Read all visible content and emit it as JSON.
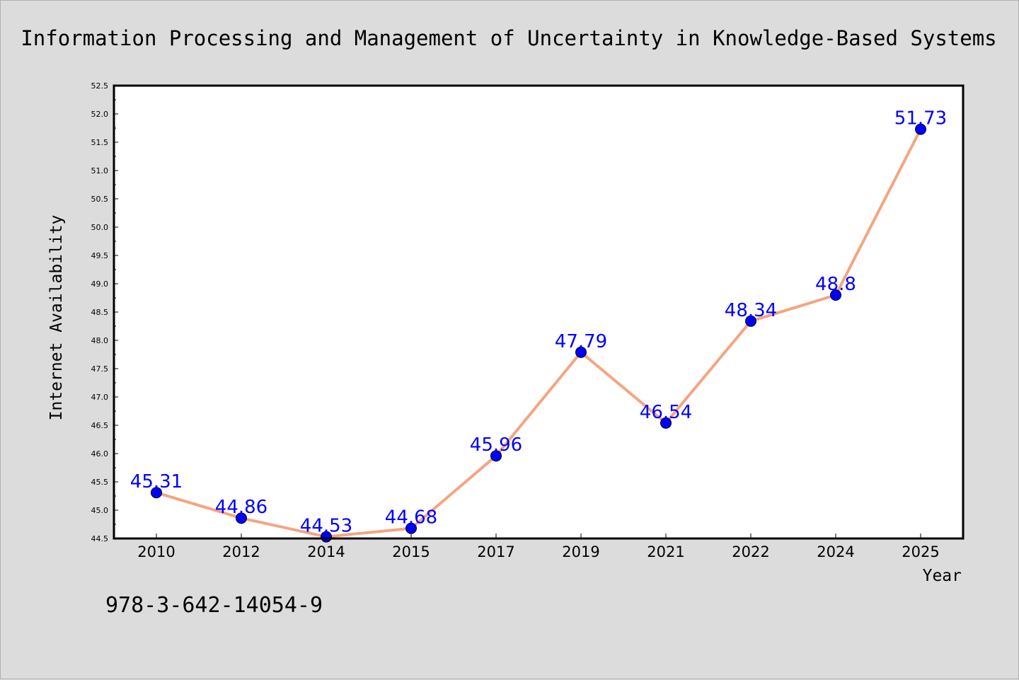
{
  "chart_data": {
    "type": "line",
    "title": "Information Processing and Management of Uncertainty in Knowledge-Based Systems",
    "xlabel": "Year",
    "ylabel": "Internet Availability",
    "categories": [
      "2010",
      "2012",
      "2014",
      "2015",
      "2017",
      "2019",
      "2021",
      "2022",
      "2024",
      "2025"
    ],
    "series": [
      {
        "values": [
          45.31,
          44.86,
          44.53,
          44.68,
          45.96,
          47.79,
          46.54,
          48.34,
          48.8,
          51.73
        ],
        "data_labels": [
          "45.31",
          "44.86",
          "44.53",
          "44.68",
          "45.96",
          "47.79",
          "46.54",
          "48.34",
          "48.8",
          "51.73"
        ]
      }
    ],
    "ylim": [
      44.5,
      52.5
    ],
    "yticks": [
      "44.5",
      "45.0",
      "45.5",
      "46.0",
      "46.5",
      "47.0",
      "47.5",
      "48.0",
      "48.5",
      "49.0",
      "49.5",
      "50.0",
      "50.5",
      "51.0",
      "51.5",
      "52.0",
      "52.5"
    ],
    "grid": false,
    "legend": "none",
    "colors": {
      "line": "#f4a582",
      "marker": "#0000ff",
      "data_label": "#0000ff",
      "background": "#dcdcdc",
      "plot_background": "#ffffff"
    },
    "footnote": "978-3-642-14054-9"
  }
}
